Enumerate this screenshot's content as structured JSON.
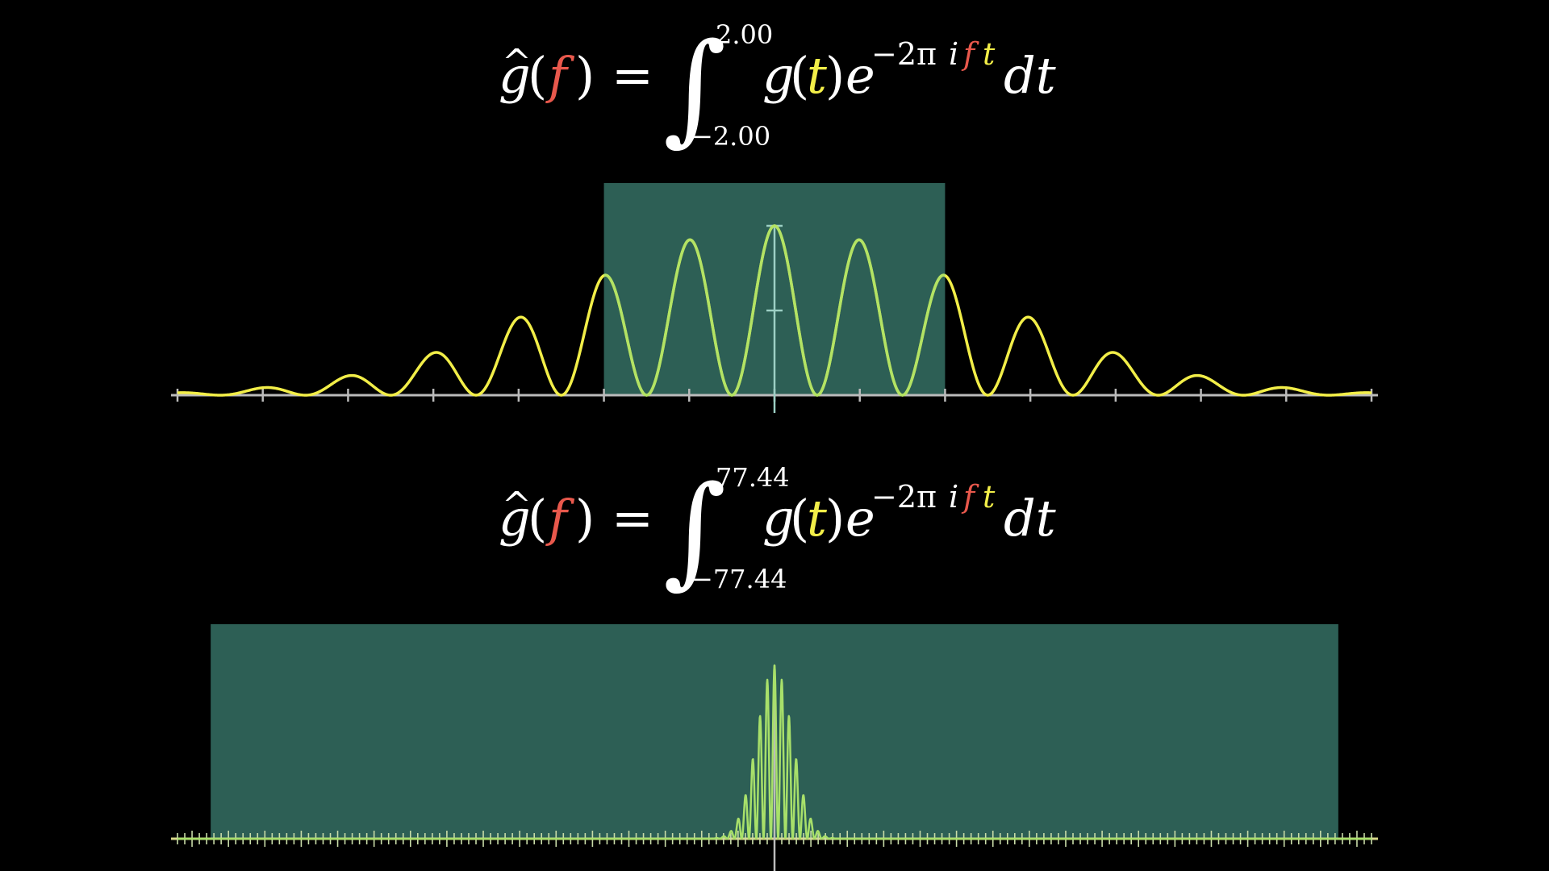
{
  "colors": {
    "background": "#000000",
    "text": "#ffffff",
    "frequency_var": "#e8584c",
    "time_var": "#f2ee48",
    "curve": "#f2ee48",
    "window_fill": "#2d5f55",
    "axis": "#bbbbbb"
  },
  "formula_top": {
    "lhs_func": "g",
    "lhs_hat": "^",
    "lhs_open": "(",
    "lhs_var": "f",
    "lhs_close": ")",
    "equals": "=",
    "integral": "∫",
    "upper_limit": "2.00",
    "lower_limit": "−2.00",
    "integrand_func": "g",
    "integrand_open": "(",
    "integrand_var": "t",
    "integrand_close": ")",
    "base": "e",
    "exp_prefix": "−2π",
    "exp_i": "i",
    "exp_f": "f",
    "exp_t": "t",
    "differential": "dt"
  },
  "formula_bottom": {
    "lhs_func": "g",
    "lhs_hat": "^",
    "lhs_open": "(",
    "lhs_var": "f",
    "lhs_close": ")",
    "equals": "=",
    "integral": "∫",
    "upper_limit": "77.44",
    "lower_limit": "−77.44",
    "integrand_func": "g",
    "integrand_open": "(",
    "integrand_var": "t",
    "integrand_close": ")",
    "base": "e",
    "exp_prefix": "−2π",
    "exp_i": "i",
    "exp_f": "f",
    "exp_t": "t",
    "differential": "dt"
  },
  "chart_data": [
    {
      "type": "line",
      "x_range": [
        -7,
        7
      ],
      "y_range": [
        0,
        1
      ],
      "window": [
        -2,
        2
      ],
      "oscillation_period": 1,
      "envelope_sigma": 2.4,
      "x_ticks": [
        -7,
        -6,
        -5,
        -4,
        -3,
        -2,
        -1,
        0,
        1,
        2,
        3,
        4,
        5,
        6,
        7
      ],
      "y_ticks": [
        0.5,
        1
      ]
    },
    {
      "type": "line",
      "x_range": [
        -82,
        82
      ],
      "y_range": [
        0,
        1
      ],
      "window": [
        -77.44,
        77.44
      ],
      "oscillation_period": 1,
      "envelope_sigma": 2.4,
      "x_tick_step": 1
    }
  ]
}
